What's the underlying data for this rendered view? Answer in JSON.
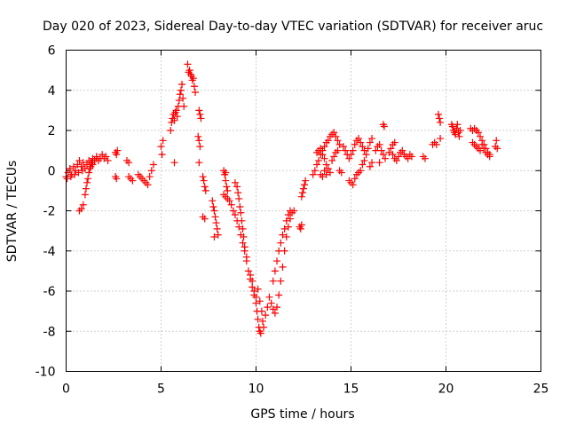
{
  "chart_data": {
    "type": "scatter",
    "title": "Day 020 of 2023, Sidereal Day-to-day VTEC variation (SDTVAR) for receiver aruc",
    "xlabel": "GPS time / hours",
    "ylabel": "SDTVAR / TECUs",
    "xlim": [
      0,
      25
    ],
    "ylim": [
      -10,
      6
    ],
    "xticks": [
      "0",
      "5",
      "10",
      "15",
      "20",
      "25"
    ],
    "yticks": [
      "-10",
      "-8",
      "-6",
      "-4",
      "-2",
      "0",
      "2",
      "4",
      "6"
    ],
    "grid": true,
    "marker": "+",
    "color": "#ff0000",
    "series": [
      {
        "name": "SDTVAR",
        "points": [
          [
            0.0,
            -0.3
          ],
          [
            0.1,
            -0.1
          ],
          [
            0.2,
            0.1
          ],
          [
            0.3,
            -0.2
          ],
          [
            0.4,
            0.2
          ],
          [
            0.5,
            0.0
          ],
          [
            0.6,
            0.3
          ],
          [
            0.7,
            0.5
          ],
          [
            0.8,
            0.2
          ],
          [
            0.9,
            0.4
          ],
          [
            1.0,
            0.1
          ],
          [
            1.1,
            0.3
          ],
          [
            1.2,
            0.5
          ],
          [
            1.3,
            0.4
          ],
          [
            1.4,
            0.6
          ],
          [
            1.5,
            0.5
          ],
          [
            1.6,
            0.7
          ],
          [
            1.7,
            0.5
          ],
          [
            1.8,
            0.6
          ],
          [
            1.9,
            0.8
          ],
          [
            2.0,
            0.6
          ],
          [
            2.1,
            0.7
          ],
          [
            2.2,
            0.5
          ],
          [
            0.05,
            -0.4
          ],
          [
            0.25,
            -0.3
          ],
          [
            0.45,
            -0.2
          ],
          [
            0.65,
            -0.1
          ],
          [
            0.85,
            0.0
          ],
          [
            0.7,
            -2.0
          ],
          [
            0.8,
            -1.9
          ],
          [
            0.9,
            -1.7
          ],
          [
            1.0,
            -1.2
          ],
          [
            1.05,
            -0.9
          ],
          [
            1.1,
            -0.6
          ],
          [
            1.15,
            -0.4
          ],
          [
            1.2,
            -0.1
          ],
          [
            1.25,
            0.1
          ],
          [
            1.3,
            0.2
          ],
          [
            1.35,
            0.4
          ],
          [
            1.4,
            0.3
          ],
          [
            1.5,
            0.5
          ],
          [
            1.6,
            0.6
          ],
          [
            2.6,
            0.9
          ],
          [
            2.65,
            0.8
          ],
          [
            2.7,
            1.0
          ],
          [
            2.6,
            -0.3
          ],
          [
            2.65,
            -0.4
          ],
          [
            3.2,
            0.5
          ],
          [
            3.3,
            0.4
          ],
          [
            3.3,
            -0.3
          ],
          [
            3.4,
            -0.4
          ],
          [
            3.5,
            -0.5
          ],
          [
            3.8,
            -0.2
          ],
          [
            3.9,
            -0.3
          ],
          [
            4.0,
            -0.4
          ],
          [
            4.1,
            -0.5
          ],
          [
            4.2,
            -0.6
          ],
          [
            4.3,
            -0.7
          ],
          [
            4.4,
            -0.3
          ],
          [
            4.5,
            0.0
          ],
          [
            4.6,
            0.3
          ],
          [
            5.0,
            1.2
          ],
          [
            5.05,
            0.8
          ],
          [
            5.1,
            1.5
          ],
          [
            5.5,
            2.0
          ],
          [
            5.55,
            2.4
          ],
          [
            5.6,
            2.6
          ],
          [
            5.65,
            2.8
          ],
          [
            5.7,
            2.5
          ],
          [
            5.75,
            2.9
          ],
          [
            5.8,
            3.0
          ],
          [
            5.85,
            2.7
          ],
          [
            5.9,
            3.2
          ],
          [
            5.95,
            3.5
          ],
          [
            6.0,
            3.8
          ],
          [
            6.05,
            4.0
          ],
          [
            6.1,
            4.3
          ],
          [
            6.15,
            3.6
          ],
          [
            6.2,
            3.2
          ],
          [
            5.7,
            0.4
          ],
          [
            6.4,
            5.3
          ],
          [
            6.45,
            4.9
          ],
          [
            6.5,
            5.0
          ],
          [
            6.55,
            4.8
          ],
          [
            6.6,
            4.7
          ],
          [
            6.65,
            4.5
          ],
          [
            6.7,
            4.6
          ],
          [
            6.75,
            4.2
          ],
          [
            6.8,
            3.9
          ],
          [
            7.0,
            3.0
          ],
          [
            7.05,
            2.8
          ],
          [
            7.1,
            2.6
          ],
          [
            6.95,
            1.7
          ],
          [
            7.0,
            1.5
          ],
          [
            7.05,
            1.2
          ],
          [
            7.0,
            0.4
          ],
          [
            7.2,
            -0.3
          ],
          [
            7.25,
            -0.5
          ],
          [
            7.3,
            -0.8
          ],
          [
            7.35,
            -1.0
          ],
          [
            7.2,
            -2.3
          ],
          [
            7.3,
            -2.4
          ],
          [
            7.7,
            -1.5
          ],
          [
            7.75,
            -1.8
          ],
          [
            7.8,
            -2.0
          ],
          [
            7.85,
            -2.3
          ],
          [
            7.9,
            -2.6
          ],
          [
            7.95,
            -2.9
          ],
          [
            8.0,
            -3.2
          ],
          [
            7.8,
            -3.3
          ],
          [
            8.3,
            0.0
          ],
          [
            8.35,
            -0.2
          ],
          [
            8.4,
            -0.5
          ],
          [
            8.45,
            -0.8
          ],
          [
            8.5,
            -1.0
          ],
          [
            8.4,
            -0.1
          ],
          [
            8.3,
            -1.2
          ],
          [
            8.4,
            -1.3
          ],
          [
            8.5,
            -1.4
          ],
          [
            8.6,
            -1.5
          ],
          [
            8.7,
            -1.7
          ],
          [
            8.8,
            -2.0
          ],
          [
            8.9,
            -2.2
          ],
          [
            9.0,
            -2.5
          ],
          [
            9.1,
            -2.8
          ],
          [
            9.2,
            -3.2
          ],
          [
            9.3,
            -3.6
          ],
          [
            9.4,
            -4.0
          ],
          [
            9.5,
            -4.5
          ],
          [
            9.6,
            -5.0
          ],
          [
            9.7,
            -5.4
          ],
          [
            9.8,
            -5.8
          ],
          [
            9.9,
            -6.2
          ],
          [
            10.0,
            -6.6
          ],
          [
            10.05,
            -7.0
          ],
          [
            10.1,
            -7.4
          ],
          [
            10.15,
            -7.8
          ],
          [
            10.2,
            -8.0
          ],
          [
            10.25,
            -8.1
          ],
          [
            8.9,
            -0.6
          ],
          [
            9.0,
            -0.8
          ],
          [
            9.05,
            -1.1
          ],
          [
            9.1,
            -1.4
          ],
          [
            9.15,
            -1.8
          ],
          [
            9.2,
            -2.1
          ],
          [
            9.25,
            -2.5
          ],
          [
            9.3,
            -2.9
          ],
          [
            9.35,
            -3.3
          ],
          [
            9.4,
            -3.8
          ],
          [
            9.5,
            -4.3
          ],
          [
            9.7,
            -5.2
          ],
          [
            9.8,
            -5.5
          ],
          [
            9.9,
            -6.0
          ],
          [
            10.0,
            -6.3
          ],
          [
            10.1,
            -5.9
          ],
          [
            10.2,
            -6.5
          ],
          [
            10.3,
            -7.0
          ],
          [
            10.35,
            -7.5
          ],
          [
            10.4,
            -7.8
          ],
          [
            10.5,
            -7.2
          ],
          [
            10.6,
            -6.8
          ],
          [
            10.7,
            -6.3
          ],
          [
            10.8,
            -6.6
          ],
          [
            10.9,
            -6.9
          ],
          [
            11.0,
            -7.1
          ],
          [
            11.1,
            -6.8
          ],
          [
            11.2,
            -6.2
          ],
          [
            11.3,
            -5.5
          ],
          [
            11.4,
            -4.8
          ],
          [
            11.5,
            -4.0
          ],
          [
            11.6,
            -3.3
          ],
          [
            11.7,
            -2.8
          ],
          [
            11.8,
            -2.4
          ],
          [
            11.9,
            -2.1
          ],
          [
            12.0,
            -2.0
          ],
          [
            10.9,
            -5.5
          ],
          [
            11.0,
            -5.0
          ],
          [
            11.1,
            -4.5
          ],
          [
            11.2,
            -4.0
          ],
          [
            11.3,
            -3.6
          ],
          [
            11.4,
            -3.2
          ],
          [
            11.5,
            -2.9
          ],
          [
            11.6,
            -2.5
          ],
          [
            11.7,
            -2.2
          ],
          [
            11.8,
            -2.0
          ],
          [
            12.3,
            -2.8
          ],
          [
            12.35,
            -2.9
          ],
          [
            12.4,
            -2.7
          ],
          [
            12.4,
            -1.3
          ],
          [
            12.45,
            -1.1
          ],
          [
            12.5,
            -0.9
          ],
          [
            12.55,
            -0.7
          ],
          [
            12.6,
            -0.5
          ],
          [
            13.0,
            -0.2
          ],
          [
            13.1,
            0.0
          ],
          [
            13.2,
            0.3
          ],
          [
            13.3,
            0.5
          ],
          [
            13.4,
            0.8
          ],
          [
            13.5,
            1.0
          ],
          [
            13.6,
            1.2
          ],
          [
            13.7,
            1.4
          ],
          [
            13.8,
            1.5
          ],
          [
            13.9,
            1.7
          ],
          [
            14.0,
            1.8
          ],
          [
            14.1,
            1.9
          ],
          [
            14.2,
            1.7
          ],
          [
            14.3,
            1.5
          ],
          [
            14.4,
            1.3
          ],
          [
            13.2,
            0.9
          ],
          [
            13.3,
            1.0
          ],
          [
            13.4,
            1.1
          ],
          [
            13.5,
            0.8
          ],
          [
            13.6,
            0.6
          ],
          [
            13.7,
            0.3
          ],
          [
            13.8,
            0.1
          ],
          [
            13.9,
            -0.1
          ],
          [
            14.0,
            0.5
          ],
          [
            14.1,
            0.7
          ],
          [
            14.2,
            0.9
          ],
          [
            14.3,
            1.0
          ],
          [
            13.6,
            0.0
          ],
          [
            13.7,
            -0.2
          ],
          [
            13.5,
            -0.3
          ],
          [
            13.4,
            -0.2
          ],
          [
            14.4,
            0.0
          ],
          [
            14.5,
            -0.1
          ],
          [
            14.6,
            1.2
          ],
          [
            14.7,
            1.0
          ],
          [
            14.8,
            0.8
          ],
          [
            14.9,
            0.6
          ],
          [
            15.0,
            0.8
          ],
          [
            15.1,
            1.0
          ],
          [
            15.2,
            1.3
          ],
          [
            15.3,
            1.5
          ],
          [
            15.4,
            1.6
          ],
          [
            15.5,
            1.4
          ],
          [
            15.6,
            1.2
          ],
          [
            15.7,
            1.0
          ],
          [
            15.8,
            0.8
          ],
          [
            15.9,
            1.1
          ],
          [
            16.0,
            1.4
          ],
          [
            16.1,
            1.6
          ],
          [
            14.9,
            -0.5
          ],
          [
            15.0,
            -0.6
          ],
          [
            15.1,
            -0.7
          ],
          [
            15.2,
            -0.4
          ],
          [
            15.3,
            -0.2
          ],
          [
            15.4,
            -0.1
          ],
          [
            15.5,
            0.0
          ],
          [
            15.6,
            0.3
          ],
          [
            15.7,
            0.5
          ],
          [
            16.0,
            0.2
          ],
          [
            16.1,
            0.4
          ],
          [
            16.3,
            1.0
          ],
          [
            16.4,
            1.2
          ],
          [
            16.5,
            1.3
          ],
          [
            16.6,
            1.0
          ],
          [
            16.7,
            0.8
          ],
          [
            16.8,
            0.6
          ],
          [
            16.5,
            0.4
          ],
          [
            16.7,
            2.3
          ],
          [
            16.75,
            2.2
          ],
          [
            17.0,
            0.9
          ],
          [
            17.1,
            1.1
          ],
          [
            17.2,
            1.3
          ],
          [
            17.3,
            1.4
          ],
          [
            17.2,
            0.8
          ],
          [
            17.3,
            0.6
          ],
          [
            17.4,
            0.5
          ],
          [
            17.5,
            0.7
          ],
          [
            17.6,
            0.9
          ],
          [
            17.7,
            1.0
          ],
          [
            17.8,
            0.8
          ],
          [
            17.9,
            0.7
          ],
          [
            18.0,
            0.6
          ],
          [
            18.1,
            0.8
          ],
          [
            18.2,
            0.7
          ],
          [
            18.8,
            0.7
          ],
          [
            18.9,
            0.6
          ],
          [
            19.3,
            1.3
          ],
          [
            19.4,
            1.4
          ],
          [
            19.5,
            1.3
          ],
          [
            19.6,
            2.8
          ],
          [
            19.65,
            2.6
          ],
          [
            19.7,
            2.4
          ],
          [
            19.7,
            1.6
          ],
          [
            20.3,
            2.3
          ],
          [
            20.35,
            2.2
          ],
          [
            20.4,
            2.0
          ],
          [
            20.45,
            1.9
          ],
          [
            20.5,
            1.8
          ],
          [
            20.55,
            2.1
          ],
          [
            20.6,
            2.3
          ],
          [
            20.65,
            1.9
          ],
          [
            20.7,
            1.7
          ],
          [
            20.75,
            2.0
          ],
          [
            21.3,
            2.1
          ],
          [
            21.4,
            2.0
          ],
          [
            21.5,
            2.1
          ],
          [
            21.6,
            2.0
          ],
          [
            21.7,
            1.9
          ],
          [
            21.8,
            1.7
          ],
          [
            21.9,
            1.5
          ],
          [
            22.0,
            1.3
          ],
          [
            22.1,
            1.1
          ],
          [
            22.2,
            0.9
          ],
          [
            22.3,
            0.8
          ],
          [
            21.4,
            1.4
          ],
          [
            21.5,
            1.3
          ],
          [
            21.6,
            1.2
          ],
          [
            21.7,
            1.1
          ],
          [
            21.8,
            1.0
          ],
          [
            21.9,
            1.3
          ],
          [
            22.0,
            1.1
          ],
          [
            22.1,
            0.9
          ],
          [
            22.2,
            0.8
          ],
          [
            22.3,
            0.7
          ],
          [
            22.6,
            1.2
          ],
          [
            22.65,
            1.5
          ],
          [
            22.7,
            1.1
          ]
        ]
      }
    ]
  }
}
